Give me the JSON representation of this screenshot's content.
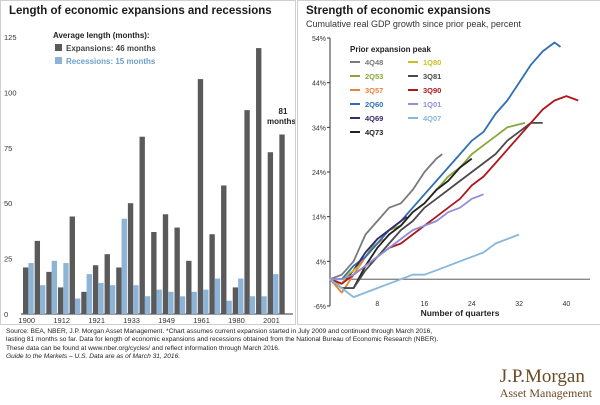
{
  "left": {
    "title": "Length of economic expansions and recessions",
    "legend_title": "Average length (months):",
    "legend_expansions": "Expansions: 46 months",
    "legend_recessions": "Recessions: 15 months",
    "annotation": [
      "81",
      "months*"
    ]
  },
  "right": {
    "title": "Strength of economic expansions",
    "subtitle": "Cumulative real GDP growth since prior peak, percent",
    "legend_title": "Prior expansion peak",
    "xlabel": "Number of quarters"
  },
  "footnote": {
    "lines": [
      "Source: BEA, NBER, J.P. Morgan Asset Management. *Chart assumes current expansion started in July 2009 and continued through March 2016,",
      "lasting 81 months so far. Data for length of economic expansions and recessions obtained from the National Bureau of Economic Research (NBER).",
      "These data can be found at www.nber.org/cycles/ and reflect information through March 2016."
    ],
    "guide": "Guide to the Markets – U.S. Data are as of March 31, 2016."
  },
  "brand": {
    "name": "J.P.Morgan",
    "sub": "Asset Management"
  },
  "colors": {
    "expansion": "#5a5a5a",
    "recession": "#8db4d6"
  },
  "chart_data": [
    {
      "type": "bar",
      "title": "Length of economic expansions and recessions",
      "x_tick_labels": [
        "1900",
        "1912",
        "1921",
        "1933",
        "1949",
        "1961",
        "1980",
        "2001"
      ],
      "y_ticks": [
        0,
        25,
        50,
        75,
        100,
        125
      ],
      "ylim": [
        0,
        125
      ],
      "grid": false,
      "legend_position": "top-left",
      "series": [
        {
          "name": "Expansions: 46 months",
          "color": "#5a5a5a",
          "values": [
            21,
            33,
            19,
            12,
            44,
            10,
            22,
            27,
            21,
            50,
            80,
            37,
            45,
            39,
            24,
            106,
            36,
            58,
            12,
            92,
            120,
            73,
            81
          ]
        },
        {
          "name": "Recessions: 15 months",
          "color": "#8db4d6",
          "values": [
            23,
            13,
            24,
            23,
            7,
            18,
            14,
            13,
            43,
            13,
            8,
            11,
            10,
            8,
            10,
            11,
            16,
            6,
            16,
            8,
            8,
            18,
            null
          ]
        }
      ]
    },
    {
      "type": "line",
      "title": "Strength of economic expansions",
      "subtitle": "Cumulative real GDP growth since prior peak, percent",
      "xlabel": "Number of quarters",
      "ylabel": "",
      "x_ticks": [
        8,
        16,
        24,
        32,
        40
      ],
      "y_ticks": [
        -6,
        4,
        14,
        24,
        34,
        44,
        54
      ],
      "y_tick_labels": [
        "-6%",
        "4%",
        "14%",
        "24%",
        "34%",
        "44%",
        "54%"
      ],
      "xlim": [
        0,
        44
      ],
      "ylim": [
        -6,
        54
      ],
      "grid": false,
      "legend_position": "top-left",
      "series": [
        {
          "name": "4Q48",
          "color": "#7a7a7a",
          "x": [
            0,
            2,
            4,
            6,
            8,
            10,
            12,
            14,
            16,
            18,
            19
          ],
          "y": [
            0,
            1,
            4,
            10,
            13,
            16,
            17,
            20,
            24,
            27,
            28
          ]
        },
        {
          "name": "2Q53",
          "color": "#8aa63a",
          "x": [
            0,
            2,
            4,
            6,
            8,
            10,
            12,
            14,
            16,
            18,
            20,
            22,
            24,
            26,
            28,
            30,
            33
          ],
          "y": [
            0,
            -1,
            2,
            5,
            9,
            11,
            12,
            15,
            17,
            20,
            23,
            25,
            28,
            30,
            32,
            34,
            35
          ]
        },
        {
          "name": "3Q57",
          "color": "#e8833a",
          "x": [
            0,
            2,
            4,
            6,
            8,
            9
          ],
          "y": [
            0,
            -3,
            1,
            5,
            8,
            9
          ]
        },
        {
          "name": "2Q60",
          "color": "#2f6fb3",
          "x": [
            0,
            2,
            4,
            6,
            8,
            10,
            12,
            14,
            16,
            18,
            20,
            22,
            24,
            26,
            28,
            30,
            32,
            34,
            36,
            38,
            39
          ],
          "y": [
            0,
            0,
            3,
            5,
            8,
            11,
            13,
            16,
            19,
            22,
            25,
            28,
            31,
            33,
            37,
            40,
            44,
            48,
            51,
            53,
            52
          ]
        },
        {
          "name": "4Q69",
          "color": "#3a2a6e",
          "x": [
            0,
            2,
            4,
            6,
            8,
            10,
            12,
            13
          ],
          "y": [
            0,
            -1,
            2,
            6,
            9,
            11,
            13,
            14
          ]
        },
        {
          "name": "4Q73",
          "color": "#222222",
          "x": [
            0,
            2,
            4,
            6,
            8,
            10,
            12,
            14,
            16,
            18,
            20,
            22,
            24
          ],
          "y": [
            0,
            -2,
            -2,
            3,
            7,
            10,
            12,
            15,
            17,
            20,
            22,
            25,
            27
          ]
        },
        {
          "name": "1Q80",
          "color": "#c9c020",
          "x": [
            0,
            1,
            2,
            3,
            4,
            5
          ],
          "y": [
            0,
            -1,
            -1,
            1,
            2,
            3
          ]
        },
        {
          "name": "3Q81",
          "color": "#4a4a4a",
          "x": [
            0,
            2,
            4,
            6,
            8,
            10,
            12,
            14,
            16,
            18,
            20,
            22,
            24,
            26,
            28,
            30,
            32,
            34,
            36
          ],
          "y": [
            0,
            -2,
            -2,
            2,
            5,
            8,
            11,
            13,
            16,
            18,
            20,
            22,
            24,
            26,
            28,
            31,
            33,
            35,
            35
          ]
        },
        {
          "name": "3Q90",
          "color": "#b0161c",
          "x": [
            0,
            2,
            4,
            6,
            8,
            10,
            12,
            14,
            16,
            18,
            20,
            22,
            24,
            26,
            28,
            30,
            32,
            34,
            36,
            38,
            40,
            42
          ],
          "y": [
            0,
            -1,
            1,
            3,
            5,
            7,
            8,
            10,
            12,
            14,
            16,
            18,
            21,
            23,
            26,
            29,
            32,
            35,
            38,
            40,
            41,
            40
          ]
        },
        {
          "name": "1Q01",
          "color": "#8f8fd9",
          "x": [
            0,
            2,
            4,
            6,
            8,
            10,
            12,
            14,
            16,
            18,
            20,
            22,
            24,
            26
          ],
          "y": [
            0,
            0,
            1,
            3,
            5,
            7,
            9,
            11,
            12,
            13,
            15,
            16,
            18,
            19
          ]
        },
        {
          "name": "4Q07",
          "color": "#86b8dc",
          "x": [
            0,
            2,
            3,
            4,
            6,
            8,
            10,
            12,
            14,
            16,
            18,
            20,
            22,
            24,
            26,
            28,
            30,
            32
          ],
          "y": [
            0,
            -2,
            -3,
            -4,
            -3,
            -2,
            -1,
            0,
            1,
            1,
            2,
            3,
            4,
            5,
            6,
            8,
            9,
            10
          ]
        }
      ]
    }
  ]
}
